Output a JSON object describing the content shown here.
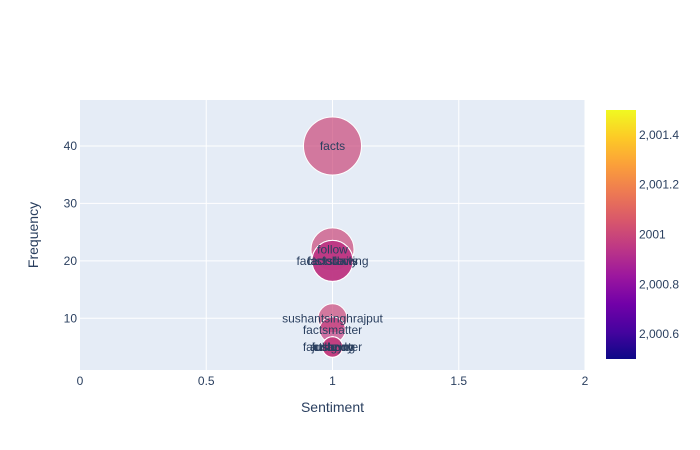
{
  "chart_data": {
    "type": "scatter",
    "xlabel": "Sentiment",
    "ylabel": "Frequency",
    "xlim": [
      0,
      2
    ],
    "ylim": [
      1,
      48
    ],
    "x_ticks": [
      0,
      0.5,
      1,
      1.5,
      2
    ],
    "x_tick_labels": [
      "0",
      "0.5",
      "1",
      "1.5",
      "2"
    ],
    "y_ticks": [
      10,
      20,
      30,
      40
    ],
    "y_tick_labels": [
      "10",
      "20",
      "30",
      "40"
    ],
    "grid": true,
    "plot_background": "#e5ecf6",
    "colorbar": {
      "colorscale": [
        "#0d0887",
        "#46039f",
        "#7201a8",
        "#9c179e",
        "#bd3786",
        "#d8576b",
        "#ed7953",
        "#fb9f3a",
        "#fdca26",
        "#f0f921"
      ],
      "range": [
        2000.5,
        2001.5
      ],
      "ticks": [
        2000.6,
        2000.8,
        2001,
        2001.2,
        2001.4
      ],
      "tick_labels": [
        "2,000.6",
        "2,000.8",
        "2001",
        "2,001.2",
        "2,001.4"
      ]
    },
    "points": [
      {
        "label": "facts",
        "x": 1,
        "y": 40,
        "size": 40,
        "color_value": 2001.0
      },
      {
        "label": "follow",
        "x": 1,
        "y": 22,
        "size": 22,
        "color_value": 2001.0
      },
      {
        "label": "factsdaily",
        "x": 1,
        "y": 20,
        "size": 20,
        "color_value": 2000.95
      },
      {
        "label": "factsfollowing",
        "x": 1,
        "y": 20,
        "size": 20,
        "color_value": 2000.95
      },
      {
        "label": "factsfacts",
        "x": 1,
        "y": 20,
        "size": 20,
        "color_value": 2000.95
      },
      {
        "label": "sushantsinghrajput",
        "x": 1,
        "y": 10,
        "size": 10,
        "color_value": 2001.0
      },
      {
        "label": "factsmatter",
        "x": 1,
        "y": 8,
        "size": 8,
        "color_value": 2000.97
      },
      {
        "label": "amazing",
        "x": 1,
        "y": 5,
        "size": 5,
        "color_value": 2000.97
      },
      {
        "label": "factshunter",
        "x": 1,
        "y": 5,
        "size": 5,
        "color_value": 2000.97
      },
      {
        "label": "fullbody",
        "x": 1,
        "y": 5,
        "size": 5,
        "color_value": 2000.97
      },
      {
        "label": "justgym",
        "x": 1,
        "y": 5,
        "size": 5,
        "color_value": 2000.97
      }
    ]
  }
}
